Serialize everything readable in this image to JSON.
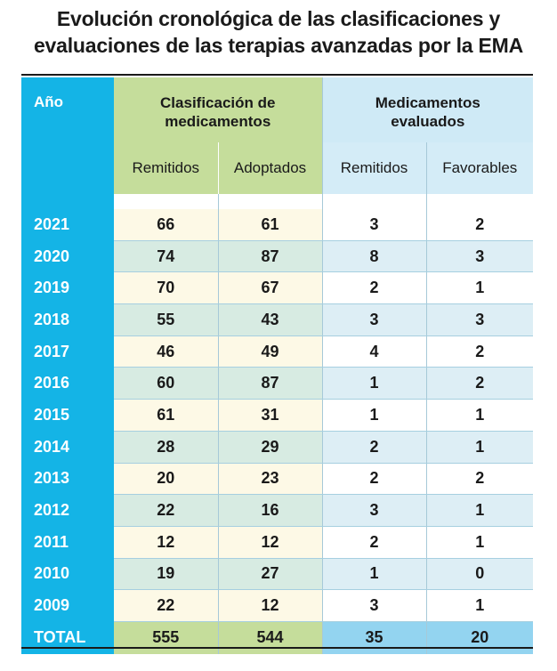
{
  "title": {
    "line1": "Evolución cronológica de las clasificaciones y",
    "line2": "evaluaciones de las terapias avanzadas por la EMA"
  },
  "colors": {
    "year_column": "#14b4e6",
    "classification_group": "#c5dd9b",
    "evaluated_group": "#cfeaf6",
    "total_evaluated": "#93d4f0"
  },
  "chart_data": {
    "type": "table",
    "title": "Evolución cronológica de las clasificaciones y evaluaciones de las terapias avanzadas por la EMA",
    "header": {
      "year": "Año",
      "group_classification": "Clasificación de medicamentos",
      "group_evaluated": "Medicamentos evaluados",
      "columns": [
        "Remitidos",
        "Adoptados",
        "Remitidos",
        "Favorables"
      ]
    },
    "rows": [
      {
        "year": "2021",
        "values": [
          "66",
          "61",
          "3",
          "2"
        ]
      },
      {
        "year": "2020",
        "values": [
          "74",
          "87",
          "8",
          "3"
        ]
      },
      {
        "year": "2019",
        "values": [
          "70",
          "67",
          "2",
          "1"
        ]
      },
      {
        "year": "2018",
        "values": [
          "55",
          "43",
          "3",
          "3"
        ]
      },
      {
        "year": "2017",
        "values": [
          "46",
          "49",
          "4",
          "2"
        ]
      },
      {
        "year": "2016",
        "values": [
          "60",
          "87",
          "1",
          "2"
        ]
      },
      {
        "year": "2015",
        "values": [
          "61",
          "31",
          "1",
          "1"
        ]
      },
      {
        "year": "2014",
        "values": [
          "28",
          "29",
          "2",
          "1"
        ]
      },
      {
        "year": "2013",
        "values": [
          "20",
          "23",
          "2",
          "2"
        ]
      },
      {
        "year": "2012",
        "values": [
          "22",
          "16",
          "3",
          "1"
        ]
      },
      {
        "year": "2011",
        "values": [
          "12",
          "12",
          "2",
          "1"
        ]
      },
      {
        "year": "2010",
        "values": [
          "19",
          "27",
          "1",
          "0"
        ]
      },
      {
        "year": "2009",
        "values": [
          "22",
          "12",
          "3",
          "1"
        ]
      }
    ],
    "total": {
      "label": "TOTAL",
      "values": [
        "555",
        "544",
        "35",
        "20"
      ]
    }
  }
}
